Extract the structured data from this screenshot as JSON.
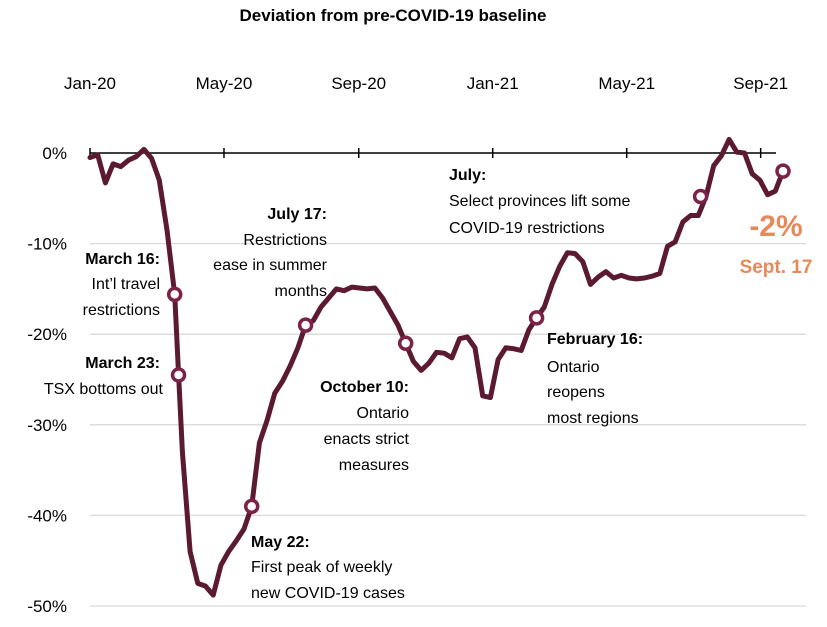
{
  "chart_data": {
    "type": "line",
    "title": "Deviation from pre-COVID-19 baseline",
    "xlabel": "",
    "ylabel": "",
    "x_ticks": [
      "Jan-20",
      "May-20",
      "Sep-20",
      "Jan-21",
      "May-21",
      "Sep-21"
    ],
    "y_ticks": [
      "0%",
      "-10%",
      "-20%",
      "-30%",
      "-40%",
      "-50%"
    ],
    "ylim": [
      -50,
      2
    ],
    "series": [
      {
        "name": "Deviation from pre-COVID-19 baseline",
        "unit": "week index (Jan-20 = 0, May-20 = 17.4, Sep-20 = 34.9, Jan-21 = 52.3, May-21 = 69.7, Sep-21 = 87.1)",
        "points": [
          [
            0,
            -0.5
          ],
          [
            1,
            -0.2
          ],
          [
            2,
            -3.3
          ],
          [
            3,
            -1.2
          ],
          [
            4,
            -1.5
          ],
          [
            5,
            -0.8
          ],
          [
            6,
            -0.4
          ],
          [
            7,
            0.4
          ],
          [
            8,
            -0.6
          ],
          [
            9,
            -3.0
          ],
          [
            10,
            -8.5
          ],
          [
            11,
            -15.6
          ],
          [
            11.5,
            -24.5
          ],
          [
            12,
            -33.0
          ],
          [
            13,
            -44.0
          ],
          [
            14,
            -47.5
          ],
          [
            15,
            -47.8
          ],
          [
            16,
            -48.8
          ],
          [
            17,
            -45.5
          ],
          [
            18,
            -44.0
          ],
          [
            19,
            -42.8
          ],
          [
            20,
            -41.5
          ],
          [
            21,
            -39.0
          ],
          [
            22,
            -32.0
          ],
          [
            23,
            -29.5
          ],
          [
            24,
            -26.5
          ],
          [
            25,
            -25.2
          ],
          [
            26,
            -23.5
          ],
          [
            27,
            -21.5
          ],
          [
            28,
            -19.0
          ],
          [
            29,
            -18.5
          ],
          [
            30,
            -17.0
          ],
          [
            31,
            -16.0
          ],
          [
            32,
            -15.0
          ],
          [
            33,
            -15.2
          ],
          [
            34,
            -14.8
          ],
          [
            35,
            -14.9
          ],
          [
            36,
            -15.0
          ],
          [
            37,
            -14.9
          ],
          [
            38,
            -16.0
          ],
          [
            39,
            -17.5
          ],
          [
            40,
            -19.0
          ],
          [
            41,
            -21.0
          ],
          [
            42,
            -23.0
          ],
          [
            43,
            -24.0
          ],
          [
            44,
            -23.2
          ],
          [
            45,
            -22.0
          ],
          [
            46,
            -22.1
          ],
          [
            47,
            -22.6
          ],
          [
            48,
            -20.5
          ],
          [
            49,
            -20.3
          ],
          [
            50,
            -21.5
          ],
          [
            51,
            -26.8
          ],
          [
            52,
            -27.0
          ],
          [
            53,
            -22.8
          ],
          [
            54,
            -21.5
          ],
          [
            55,
            -21.6
          ],
          [
            56,
            -21.8
          ],
          [
            57,
            -19.5
          ],
          [
            58,
            -18.2
          ],
          [
            59,
            -17.0
          ],
          [
            60,
            -14.5
          ],
          [
            61,
            -12.5
          ],
          [
            62,
            -11.0
          ],
          [
            63,
            -11.1
          ],
          [
            64,
            -12.0
          ],
          [
            65,
            -14.5
          ],
          [
            66,
            -13.7
          ],
          [
            67,
            -13.1
          ],
          [
            68,
            -13.8
          ],
          [
            69,
            -13.5
          ],
          [
            70,
            -13.8
          ],
          [
            71,
            -13.9
          ],
          [
            72,
            -13.8
          ],
          [
            73,
            -13.6
          ],
          [
            74,
            -13.3
          ],
          [
            75,
            -10.3
          ],
          [
            76,
            -9.8
          ],
          [
            77,
            -7.6
          ],
          [
            78,
            -6.9
          ],
          [
            79,
            -6.9
          ],
          [
            80,
            -4.8
          ],
          [
            81,
            -1.4
          ],
          [
            82,
            -0.3
          ],
          [
            83,
            1.5
          ],
          [
            84,
            0.1
          ],
          [
            85,
            0.0
          ],
          [
            86,
            -2.3
          ],
          [
            87,
            -3.0
          ],
          [
            88,
            -4.6
          ],
          [
            89,
            -4.2
          ],
          [
            90,
            -2.0
          ]
        ]
      }
    ],
    "markers": [
      {
        "x": 11,
        "y": -15.6,
        "label_title": "March 16:",
        "label_lines": [
          "Int’l travel",
          "restrictions"
        ]
      },
      {
        "x": 11.5,
        "y": -24.5,
        "label_title": "March 23:",
        "label_lines": [
          "TSX bottoms out"
        ]
      },
      {
        "x": 21,
        "y": -39.0,
        "label_title": "May 22:",
        "label_lines": [
          "First peak of weekly",
          "new COVID-19 cases"
        ]
      },
      {
        "x": 28,
        "y": -19.0,
        "label_title": "July 17:",
        "label_lines": [
          "Restrictions",
          "ease in summer",
          "months"
        ]
      },
      {
        "x": 41,
        "y": -21.0,
        "label_title": "October 10:",
        "label_lines": [
          "Ontario",
          "enacts strict",
          "measures"
        ]
      },
      {
        "x": 58,
        "y": -18.2,
        "label_title": "February 16:",
        "label_lines": [
          "Ontario",
          "reopens",
          "most regions"
        ]
      },
      {
        "x": 79.3,
        "y": -4.8,
        "label_title": "July:",
        "label_lines": [
          "Select provinces lift some",
          "COVID-19 restrictions"
        ]
      },
      {
        "x": 90,
        "y": -2.0,
        "label_title": "",
        "label_lines": []
      }
    ],
    "callout": {
      "value": "-2%",
      "date": "Sept. 17"
    },
    "colors": {
      "line": "#5b1a32",
      "marker_stroke": "#7c2248",
      "callout": "#e8895a",
      "axis": "#000000",
      "grid": "#d9d9d9"
    }
  }
}
